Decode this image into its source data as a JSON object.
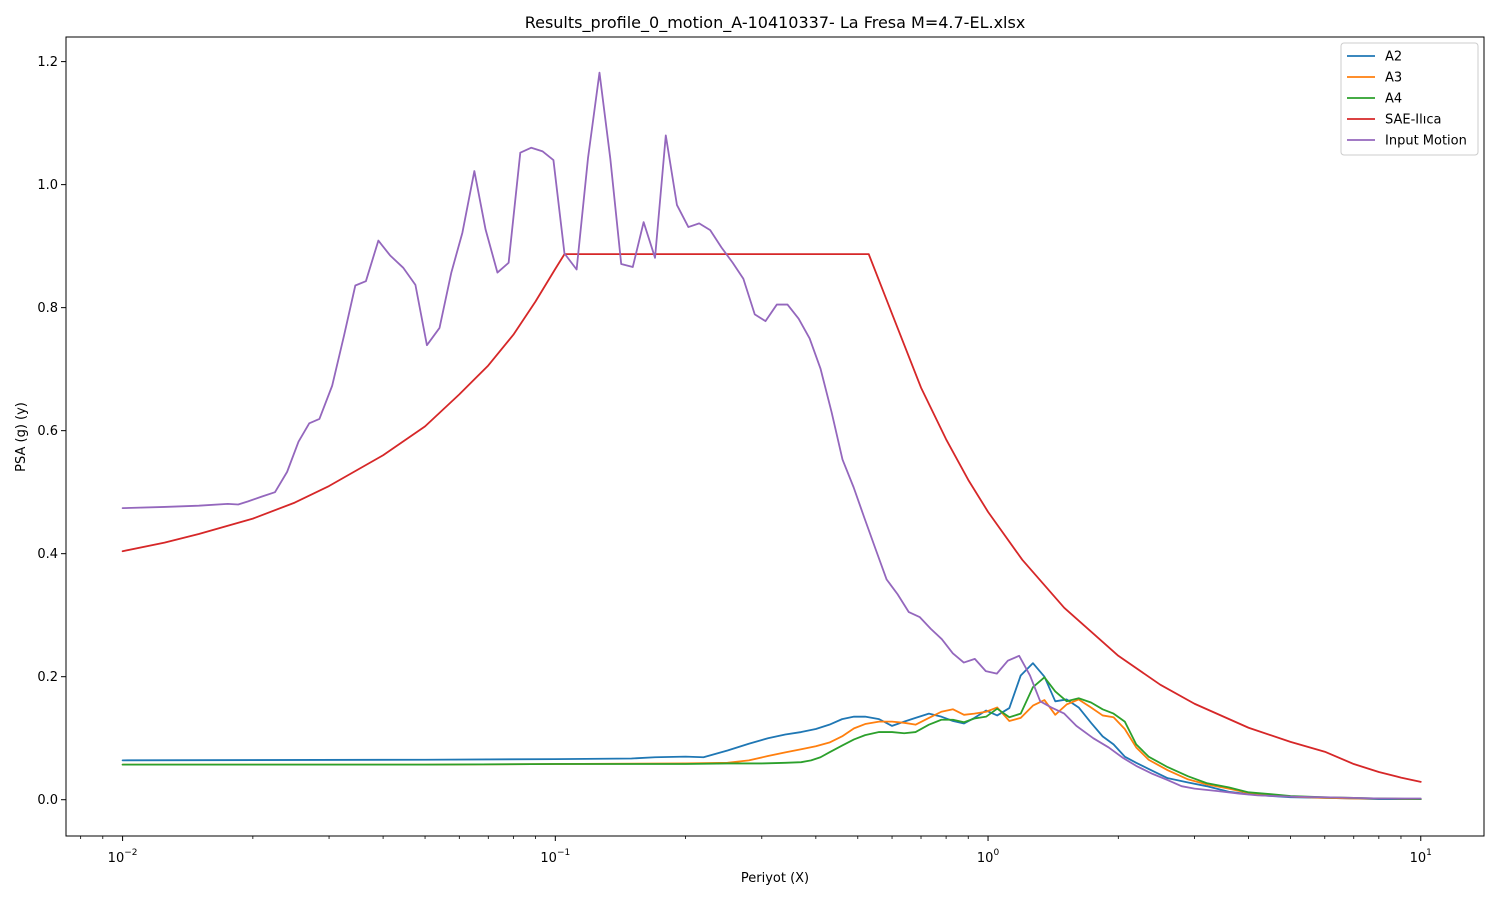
{
  "chart_data": {
    "type": "line",
    "title": "Results_profile_0_motion_A-10410337- La Fresa M=4.7-EL.xlsx",
    "xlabel": "Periyot (X)",
    "ylabel": "PSA (g) (y)",
    "xscale": "log",
    "xlim": [
      0.0074,
      14
    ],
    "ylim": [
      -0.059,
      1.24
    ],
    "xticks": [
      0.01,
      0.1,
      1,
      10
    ],
    "xtick_labels": [
      {
        "base": "10",
        "exp": "−2"
      },
      {
        "base": "10",
        "exp": "−1"
      },
      {
        "base": "10",
        "exp": "0"
      },
      {
        "base": "10",
        "exp": "1"
      }
    ],
    "yticks": [
      0.0,
      0.2,
      0.4,
      0.6,
      0.8,
      1.0,
      1.2
    ],
    "ytick_labels": [
      "0.0",
      "0.2",
      "0.4",
      "0.6",
      "0.8",
      "1.0",
      "1.2"
    ],
    "grid": false,
    "legend": "top-right",
    "series": [
      {
        "name": "A2",
        "color": "#1f77b4",
        "x": [
          0.01,
          0.05,
          0.1,
          0.15,
          0.17,
          0.2,
          0.22,
          0.25,
          0.28,
          0.31,
          0.34,
          0.37,
          0.4,
          0.43,
          0.46,
          0.49,
          0.52,
          0.56,
          0.6,
          0.64,
          0.68,
          0.73,
          0.78,
          0.83,
          0.88,
          0.93,
          0.99,
          1.05,
          1.12,
          1.19,
          1.27,
          1.35,
          1.43,
          1.52,
          1.62,
          1.73,
          1.84,
          1.95,
          2.07,
          2.2,
          2.35,
          2.6,
          2.9,
          3.2,
          3.6,
          4.0,
          4.5,
          5.0,
          6.0,
          7.0,
          8.0,
          10.0
        ],
        "y": [
          0.064,
          0.065,
          0.066,
          0.067,
          0.069,
          0.07,
          0.069,
          0.08,
          0.091,
          0.1,
          0.106,
          0.11,
          0.115,
          0.122,
          0.131,
          0.135,
          0.135,
          0.131,
          0.12,
          0.127,
          0.133,
          0.14,
          0.135,
          0.128,
          0.124,
          0.133,
          0.145,
          0.137,
          0.149,
          0.202,
          0.222,
          0.2,
          0.16,
          0.163,
          0.15,
          0.125,
          0.103,
          0.09,
          0.07,
          0.06,
          0.05,
          0.035,
          0.028,
          0.022,
          0.013,
          0.009,
          0.006,
          0.004,
          0.003,
          0.002,
          0.001,
          0.001
        ]
      },
      {
        "name": "A3",
        "color": "#ff7f0e",
        "x": [
          0.01,
          0.05,
          0.1,
          0.2,
          0.25,
          0.28,
          0.31,
          0.34,
          0.37,
          0.4,
          0.43,
          0.46,
          0.49,
          0.52,
          0.56,
          0.6,
          0.64,
          0.68,
          0.73,
          0.78,
          0.83,
          0.88,
          0.93,
          0.99,
          1.05,
          1.12,
          1.19,
          1.27,
          1.35,
          1.43,
          1.52,
          1.62,
          1.73,
          1.84,
          1.95,
          2.07,
          2.2,
          2.35,
          2.6,
          2.9,
          3.2,
          3.6,
          4.0,
          4.5,
          5.0,
          6.0,
          7.0,
          8.0,
          10.0
        ],
        "y": [
          0.057,
          0.057,
          0.058,
          0.059,
          0.06,
          0.064,
          0.071,
          0.077,
          0.082,
          0.087,
          0.093,
          0.103,
          0.116,
          0.123,
          0.127,
          0.127,
          0.125,
          0.122,
          0.133,
          0.143,
          0.147,
          0.138,
          0.14,
          0.143,
          0.15,
          0.128,
          0.133,
          0.153,
          0.162,
          0.138,
          0.155,
          0.163,
          0.15,
          0.137,
          0.134,
          0.115,
          0.085,
          0.065,
          0.048,
          0.033,
          0.025,
          0.018,
          0.011,
          0.008,
          0.005,
          0.003,
          0.002,
          0.002,
          0.001
        ]
      },
      {
        "name": "A4",
        "color": "#2ca02c",
        "x": [
          0.01,
          0.05,
          0.1,
          0.2,
          0.25,
          0.3,
          0.34,
          0.37,
          0.39,
          0.41,
          0.43,
          0.46,
          0.49,
          0.52,
          0.56,
          0.6,
          0.64,
          0.68,
          0.73,
          0.78,
          0.83,
          0.88,
          0.93,
          0.99,
          1.05,
          1.12,
          1.19,
          1.27,
          1.35,
          1.43,
          1.52,
          1.62,
          1.73,
          1.84,
          1.95,
          2.07,
          2.2,
          2.35,
          2.6,
          2.9,
          3.2,
          3.6,
          4.0,
          4.5,
          5.0,
          6.0,
          7.0,
          8.0,
          10.0
        ],
        "y": [
          0.057,
          0.057,
          0.058,
          0.058,
          0.059,
          0.059,
          0.06,
          0.061,
          0.064,
          0.069,
          0.077,
          0.088,
          0.098,
          0.105,
          0.11,
          0.11,
          0.108,
          0.11,
          0.122,
          0.13,
          0.13,
          0.126,
          0.132,
          0.135,
          0.148,
          0.134,
          0.14,
          0.183,
          0.199,
          0.176,
          0.16,
          0.165,
          0.158,
          0.147,
          0.14,
          0.127,
          0.09,
          0.07,
          0.053,
          0.038,
          0.027,
          0.02,
          0.012,
          0.009,
          0.006,
          0.004,
          0.003,
          0.002,
          0.001
        ]
      },
      {
        "name": "SAE-Ilıca",
        "color": "#d62728",
        "x": [
          0.01,
          0.0125,
          0.015,
          0.02,
          0.025,
          0.03,
          0.04,
          0.05,
          0.06,
          0.07,
          0.08,
          0.09,
          0.1,
          0.105,
          0.2,
          0.3,
          0.4,
          0.53,
          0.6,
          0.7,
          0.8,
          0.9,
          1.0,
          1.2,
          1.5,
          2.0,
          2.5,
          3.0,
          4.0,
          5.0,
          6.0,
          7.0,
          8.0,
          9.0,
          10.0
        ],
        "y": [
          0.404,
          0.418,
          0.432,
          0.457,
          0.483,
          0.51,
          0.56,
          0.607,
          0.659,
          0.706,
          0.756,
          0.81,
          0.863,
          0.887,
          0.887,
          0.887,
          0.887,
          0.887,
          0.79,
          0.67,
          0.586,
          0.52,
          0.468,
          0.39,
          0.312,
          0.234,
          0.187,
          0.156,
          0.117,
          0.094,
          0.078,
          0.058,
          0.045,
          0.036,
          0.029
        ]
      },
      {
        "name": "Input Motion",
        "color": "#9467bd",
        "x": [
          0.01,
          0.0125,
          0.015,
          0.0175,
          0.0185,
          0.0195,
          0.021,
          0.0225,
          0.024,
          0.0255,
          0.027,
          0.0285,
          0.0305,
          0.0325,
          0.0345,
          0.0365,
          0.039,
          0.0415,
          0.0445,
          0.0475,
          0.0505,
          0.054,
          0.0575,
          0.061,
          0.065,
          0.069,
          0.0735,
          0.078,
          0.083,
          0.088,
          0.0935,
          0.099,
          0.105,
          0.112,
          0.119,
          0.1265,
          0.134,
          0.142,
          0.151,
          0.16,
          0.17,
          0.18,
          0.191,
          0.203,
          0.215,
          0.228,
          0.242,
          0.257,
          0.272,
          0.289,
          0.306,
          0.325,
          0.344,
          0.365,
          0.387,
          0.41,
          0.435,
          0.461,
          0.489,
          0.518,
          0.55,
          0.583,
          0.618,
          0.656,
          0.695,
          0.737,
          0.782,
          0.829,
          0.879,
          0.932,
          0.988,
          1.048,
          1.111,
          1.18,
          1.25,
          1.32,
          1.4,
          1.5,
          1.6,
          1.75,
          1.9,
          2.05,
          2.2,
          2.4,
          2.6,
          2.8,
          3.0,
          3.4,
          3.8,
          4.2,
          5.0,
          6.0,
          7.0,
          8.0,
          10.0
        ],
        "y": [
          0.474,
          0.476,
          0.478,
          0.481,
          0.48,
          0.485,
          0.493,
          0.5,
          0.533,
          0.582,
          0.612,
          0.619,
          0.673,
          0.755,
          0.836,
          0.843,
          0.909,
          0.885,
          0.865,
          0.837,
          0.739,
          0.767,
          0.857,
          0.922,
          1.022,
          0.927,
          0.857,
          0.873,
          1.052,
          1.06,
          1.054,
          1.04,
          0.888,
          0.862,
          1.043,
          1.182,
          1.042,
          0.871,
          0.866,
          0.939,
          0.881,
          1.08,
          0.967,
          0.931,
          0.937,
          0.926,
          0.898,
          0.873,
          0.847,
          0.789,
          0.778,
          0.805,
          0.805,
          0.782,
          0.75,
          0.701,
          0.63,
          0.553,
          0.508,
          0.458,
          0.407,
          0.358,
          0.334,
          0.305,
          0.297,
          0.278,
          0.261,
          0.238,
          0.223,
          0.229,
          0.209,
          0.205,
          0.226,
          0.234,
          0.202,
          0.16,
          0.15,
          0.14,
          0.12,
          0.1,
          0.085,
          0.068,
          0.055,
          0.042,
          0.032,
          0.022,
          0.018,
          0.014,
          0.01,
          0.007,
          0.005,
          0.004,
          0.003,
          0.002,
          0.002
        ]
      }
    ]
  }
}
